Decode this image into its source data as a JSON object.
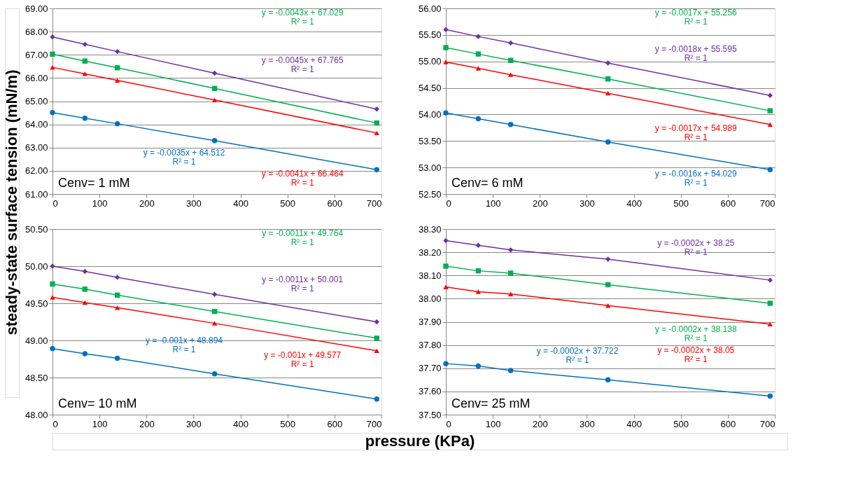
{
  "chart_data": [
    {
      "type": "line",
      "ylabel": "steady-state surface tension (mN/m)",
      "x": [
        0,
        69,
        138,
        345,
        690
      ],
      "xlim": [
        0,
        700
      ],
      "xticks": [
        0,
        100,
        200,
        300,
        400,
        500,
        600,
        700
      ],
      "ylim": [
        61,
        69
      ],
      "yticks": [
        {
          "value": 61,
          "label": "61.00"
        },
        {
          "value": 62,
          "label": "62.00"
        },
        {
          "value": 63,
          "label": "63.00"
        },
        {
          "value": 64,
          "label": "64.00"
        },
        {
          "value": 65,
          "label": "65.00"
        },
        {
          "value": 66,
          "label": "66.00"
        },
        {
          "value": 67,
          "label": "67.00"
        },
        {
          "value": 68,
          "label": "68.00"
        },
        {
          "value": 69,
          "label": "69.00"
        }
      ],
      "grid": "y",
      "series": [
        {
          "color": "#7030a0",
          "marker": "diamond",
          "values": [
            67.77,
            67.45,
            67.14,
            66.21,
            64.66
          ]
        },
        {
          "color": "#00b050",
          "marker": "square",
          "values": [
            67.03,
            66.73,
            66.44,
            65.55,
            64.06
          ]
        },
        {
          "color": "#ff0000",
          "marker": "triangle",
          "values": [
            66.46,
            66.18,
            65.9,
            65.05,
            63.63
          ]
        },
        {
          "color": "#0070c0",
          "marker": "circle",
          "values": [
            64.51,
            64.27,
            64.03,
            63.3,
            62.05
          ]
        }
      ],
      "annotations": [
        "Cenv= 1 mM",
        "y = -0.0045x + 67.765\nR² = 1",
        "y = -0.0043x + 67.029\nR² = 1",
        "y = -0.0041x + 66.464\nR² = 1",
        "y = -0.0035x + 64.512\nR² = 1"
      ]
    },
    {
      "type": "line",
      "x": [
        0,
        69,
        138,
        345,
        690
      ],
      "xlim": [
        0,
        700
      ],
      "xticks": [
        0,
        100,
        200,
        300,
        400,
        500,
        600,
        700
      ],
      "ylim": [
        52.5,
        56
      ],
      "yticks": [
        {
          "value": 52.5,
          "label": "52.50"
        },
        {
          "value": 53,
          "label": "53.00"
        },
        {
          "value": 53.5,
          "label": "53.50"
        },
        {
          "value": 54,
          "label": "54.00"
        },
        {
          "value": 54.5,
          "label": "54.50"
        },
        {
          "value": 55,
          "label": "55.00"
        },
        {
          "value": 55.5,
          "label": "55.50"
        },
        {
          "value": 56,
          "label": "56.00"
        }
      ],
      "grid": "y",
      "series": [
        {
          "color": "#7030a0",
          "marker": "diamond",
          "values": [
            55.6,
            55.47,
            55.35,
            54.97,
            54.36
          ]
        },
        {
          "color": "#00b050",
          "marker": "square",
          "values": [
            55.26,
            55.14,
            55.02,
            54.67,
            54.07
          ]
        },
        {
          "color": "#ff0000",
          "marker": "triangle",
          "values": [
            54.99,
            54.87,
            54.75,
            54.4,
            53.81
          ]
        },
        {
          "color": "#0070c0",
          "marker": "circle",
          "values": [
            54.03,
            53.92,
            53.81,
            53.48,
            52.96
          ]
        }
      ],
      "annotations": [
        "Cenv= 6 mM",
        "y = -0.0018x + 55.595\nR² = 1",
        "y = -0.0017x + 55.256\nR² = 1",
        "y = -0.0017x + 54.989\nR² = 1",
        "y = -0.0016x + 54.029\nR² = 1"
      ]
    },
    {
      "type": "line",
      "xlabel": "pressure (KPa)",
      "x": [
        0,
        69,
        138,
        345,
        690
      ],
      "xlim": [
        0,
        700
      ],
      "xticks": [
        0,
        100,
        200,
        300,
        400,
        500,
        600,
        700
      ],
      "ylim": [
        48,
        50.5
      ],
      "yticks": [
        {
          "value": 48,
          "label": "48.00"
        },
        {
          "value": 48.5,
          "label": "48.50"
        },
        {
          "value": 49,
          "label": "49.00"
        },
        {
          "value": 49.5,
          "label": "49.50"
        },
        {
          "value": 50,
          "label": "50.00"
        },
        {
          "value": 50.5,
          "label": "50.50"
        }
      ],
      "grid": "y",
      "series": [
        {
          "color": "#7030a0",
          "marker": "diamond",
          "values": [
            50.0,
            49.93,
            49.85,
            49.62,
            49.25
          ]
        },
        {
          "color": "#00b050",
          "marker": "square",
          "values": [
            49.76,
            49.69,
            49.61,
            49.39,
            49.03
          ]
        },
        {
          "color": "#ff0000",
          "marker": "triangle",
          "values": [
            49.58,
            49.51,
            49.44,
            49.23,
            48.86
          ]
        },
        {
          "color": "#0070c0",
          "marker": "circle",
          "values": [
            48.89,
            48.82,
            48.76,
            48.55,
            48.21
          ]
        }
      ],
      "annotations": [
        "Cenv= 10 mM",
        "y = -0.0011x + 50.001\nR² = 1",
        "y = -0.0011x + 49.764\nR² = 1",
        "y = -0.001x + 49.577\nR² = 1",
        "y = -0.001x + 48.894\nR² = 1"
      ]
    },
    {
      "type": "line",
      "x": [
        0,
        69,
        138,
        345,
        690
      ],
      "xlim": [
        0,
        700
      ],
      "xticks": [
        0,
        100,
        200,
        300,
        400,
        500,
        600,
        700
      ],
      "ylim": [
        37.5,
        38.3
      ],
      "yticks": [
        {
          "value": 37.5,
          "label": "37.50"
        },
        {
          "value": 37.6,
          "label": "37.60"
        },
        {
          "value": 37.7,
          "label": "37.70"
        },
        {
          "value": 37.8,
          "label": "37.80"
        },
        {
          "value": 37.9,
          "label": "37.90"
        },
        {
          "value": 38,
          "label": "38.00"
        },
        {
          "value": 38.1,
          "label": "38.10"
        },
        {
          "value": 38.2,
          "label": "38.20"
        },
        {
          "value": 38.3,
          "label": "38.30"
        }
      ],
      "grid": "y",
      "series": [
        {
          "color": "#7030a0",
          "marker": "diamond",
          "values": [
            38.25,
            38.23,
            38.21,
            38.17,
            38.08
          ]
        },
        {
          "color": "#00b050",
          "marker": "square",
          "values": [
            38.14,
            38.12,
            38.11,
            38.06,
            37.98
          ]
        },
        {
          "color": "#ff0000",
          "marker": "triangle",
          "values": [
            38.05,
            38.03,
            38.02,
            37.97,
            37.89
          ]
        },
        {
          "color": "#0070c0",
          "marker": "circle",
          "values": [
            37.72,
            37.71,
            37.69,
            37.65,
            37.58
          ]
        }
      ],
      "annotations": [
        "Cenv= 25 mM",
        "y = -0.0002x + 38.25\nR² = 1",
        "y = -0.0002x + 38.138\nR² = 1",
        "y = -0.0002x + 38.05\nR² = 1",
        "y = -0.0002x + 37.722\nR² = 1"
      ]
    }
  ]
}
